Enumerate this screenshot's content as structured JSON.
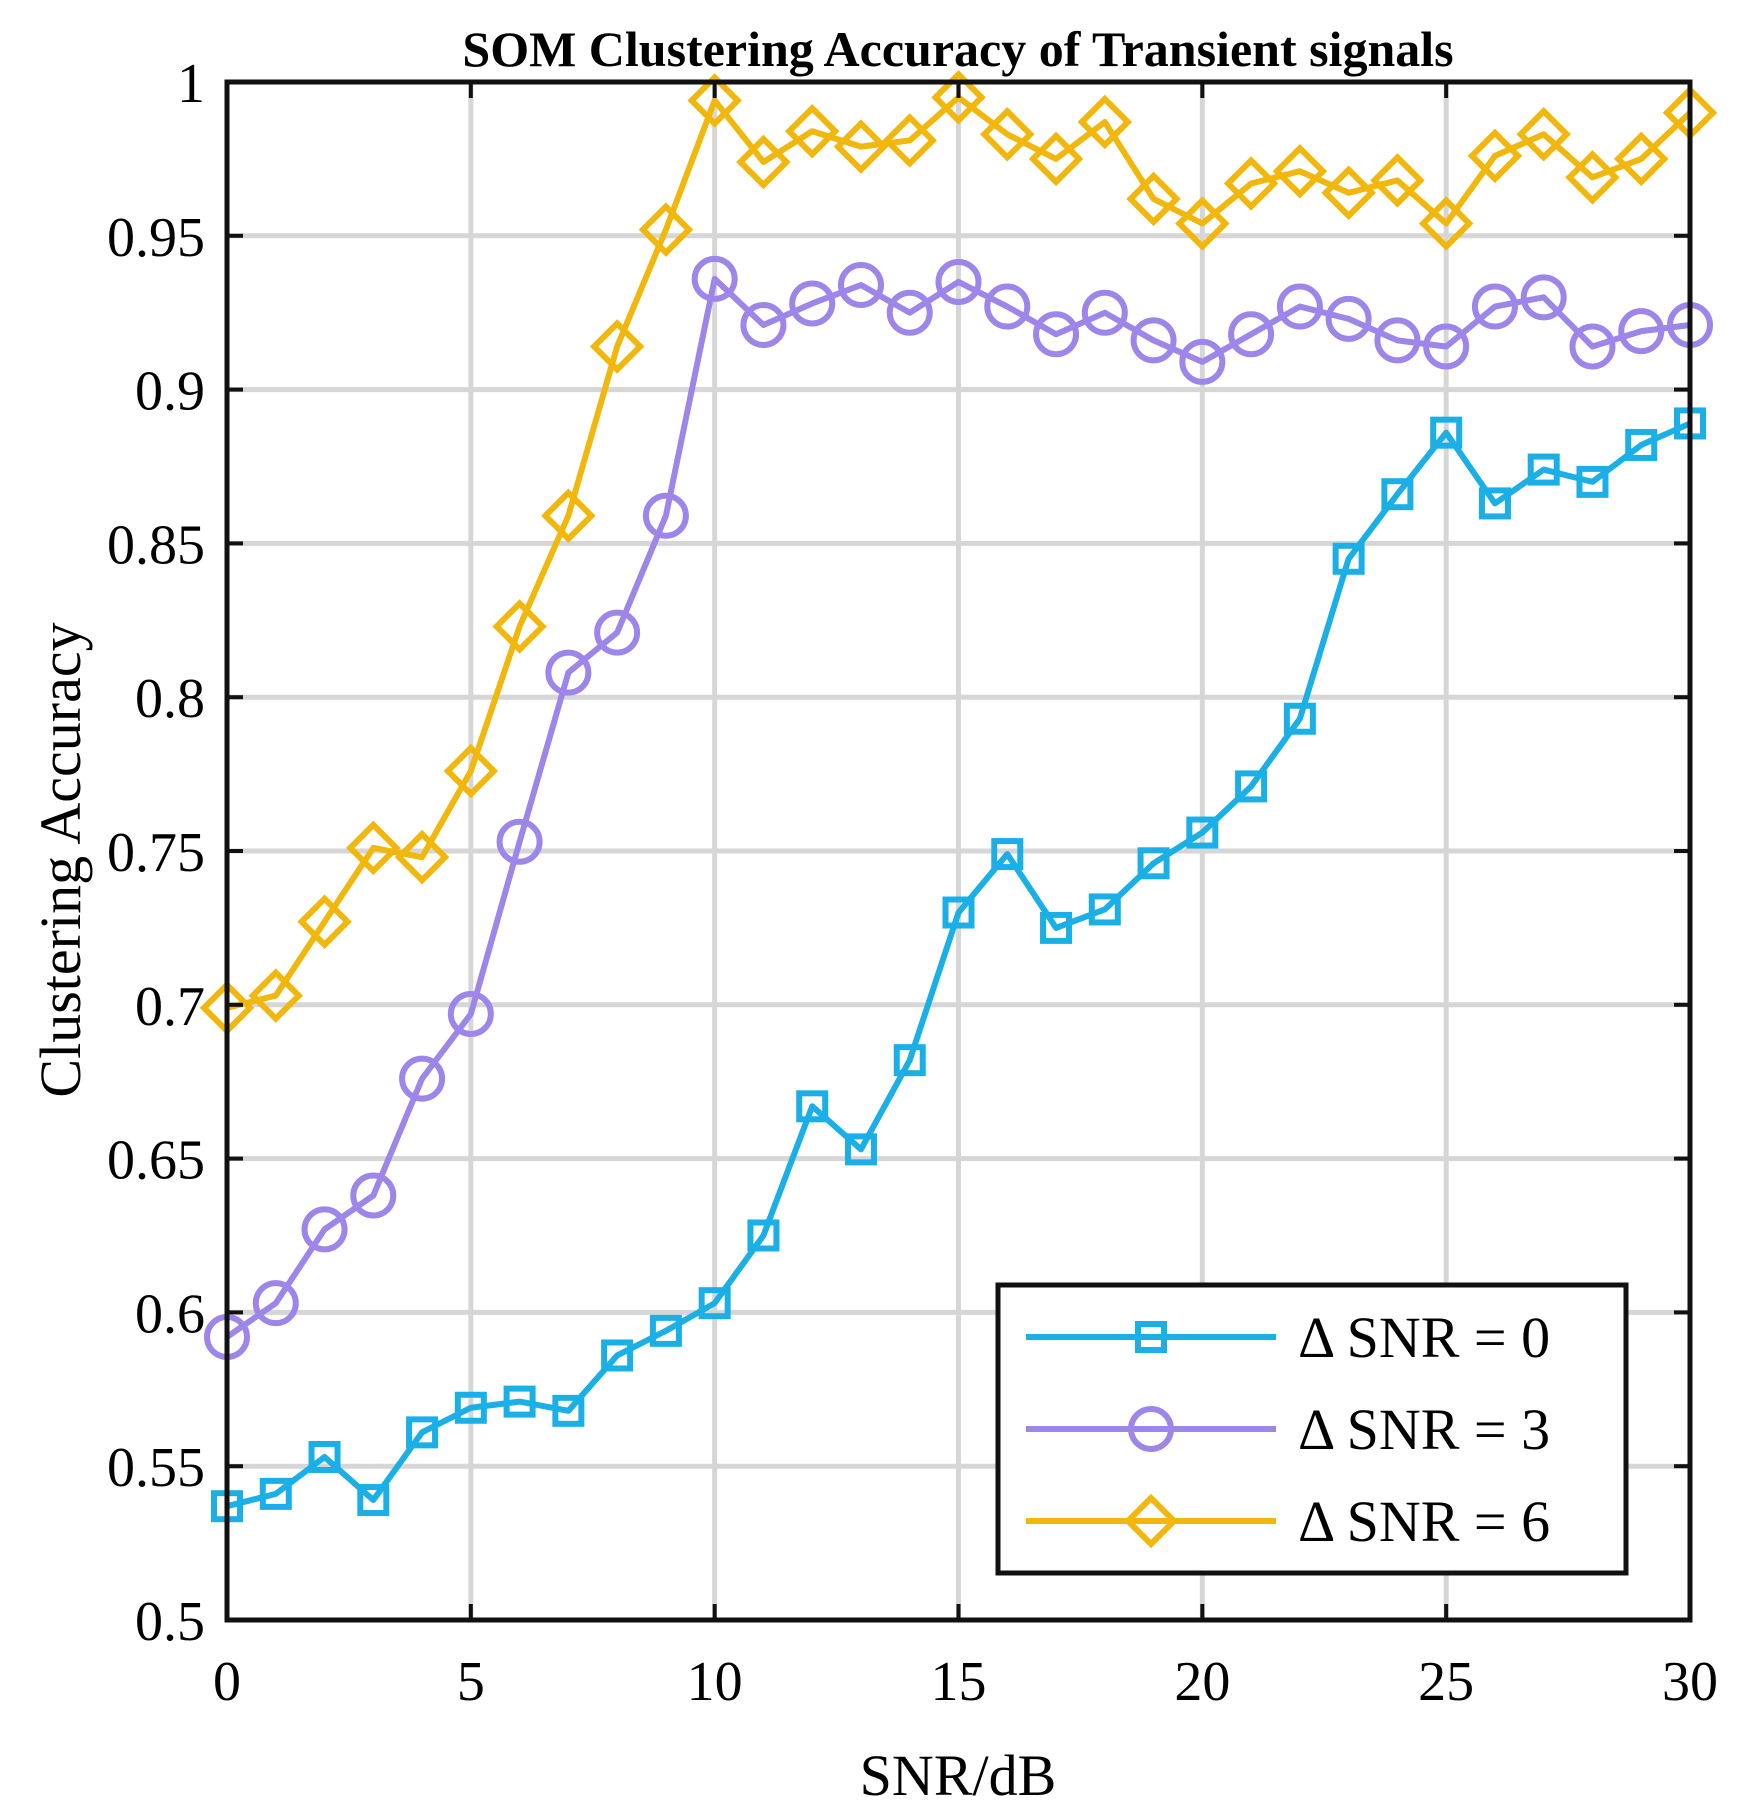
{
  "chart_data": {
    "type": "line",
    "title": "SOM Clustering Accuracy of Transient signals",
    "xlabel": "SNR/dB",
    "ylabel": "Clustering Accuracy",
    "xlim": [
      0,
      30
    ],
    "ylim": [
      0.5,
      1
    ],
    "grid": true,
    "legend_position": "bottom-right",
    "x_ticks": [
      0,
      5,
      10,
      15,
      20,
      25,
      30
    ],
    "x_tick_labels": [
      "0",
      "5",
      "10",
      "15",
      "20",
      "25",
      "30"
    ],
    "y_ticks": [
      0.5,
      0.55,
      0.6,
      0.65,
      0.7,
      0.75,
      0.8,
      0.85,
      0.9,
      0.95,
      1
    ],
    "y_tick_labels": [
      "0.5",
      "0.55",
      "0.6",
      "0.65",
      "0.7",
      "0.75",
      "0.8",
      "0.85",
      "0.9",
      "0.95",
      "1"
    ],
    "x": [
      0,
      1,
      2,
      3,
      4,
      5,
      6,
      7,
      8,
      9,
      10,
      11,
      12,
      13,
      14,
      15,
      16,
      17,
      18,
      19,
      20,
      21,
      22,
      23,
      24,
      25,
      26,
      27,
      28,
      29,
      30
    ],
    "series": [
      {
        "name": "Δ SNR = 0",
        "color": "#1aafe6",
        "marker": "square",
        "values": [
          0.537,
          0.541,
          0.553,
          0.539,
          0.561,
          0.569,
          0.571,
          0.568,
          0.586,
          0.594,
          0.603,
          0.625,
          0.667,
          0.653,
          0.682,
          0.73,
          0.749,
          0.725,
          0.731,
          0.746,
          0.756,
          0.771,
          0.793,
          0.845,
          0.866,
          0.886,
          0.863,
          0.874,
          0.87,
          0.882,
          0.889
        ]
      },
      {
        "name": "Δ SNR = 3",
        "color": "#9d85ea",
        "marker": "circle",
        "values": [
          0.592,
          0.603,
          0.627,
          0.638,
          0.676,
          0.697,
          0.753,
          0.808,
          0.821,
          0.859,
          0.936,
          0.921,
          0.928,
          0.934,
          0.925,
          0.935,
          0.927,
          0.918,
          0.925,
          0.916,
          0.909,
          0.918,
          0.927,
          0.923,
          0.916,
          0.914,
          0.927,
          0.93,
          0.914,
          0.919,
          0.921
        ]
      },
      {
        "name": "Δ SNR = 6",
        "color": "#f2b70c",
        "marker": "diamond",
        "values": [
          0.699,
          0.703,
          0.727,
          0.751,
          0.748,
          0.776,
          0.823,
          0.859,
          0.914,
          0.952,
          0.994,
          0.974,
          0.984,
          0.979,
          0.981,
          0.995,
          0.983,
          0.975,
          0.987,
          0.962,
          0.954,
          0.967,
          0.971,
          0.964,
          0.968,
          0.954,
          0.976,
          0.983,
          0.969,
          0.975,
          0.99
        ]
      }
    ]
  }
}
